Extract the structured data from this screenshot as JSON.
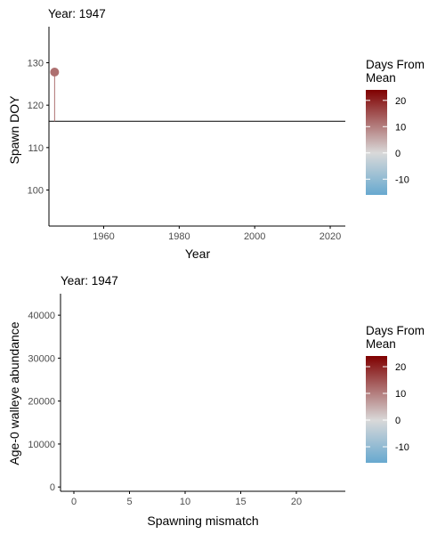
{
  "colors": {
    "low": "#67a9cf",
    "mid": "#d9d9d9",
    "high": "#7f0000",
    "axis": "#000000",
    "tick_text": "#4d4d4d"
  },
  "chart_data": [
    {
      "type": "scatter",
      "title": "Year: 1947",
      "xlabel": "Year",
      "ylabel": "Spawn DOY",
      "xlim": [
        1945.5,
        2024
      ],
      "ylim": [
        91.5,
        138.5
      ],
      "x_ticks": [
        1960,
        1980,
        2000,
        2020
      ],
      "y_ticks": [
        100,
        110,
        120,
        130
      ],
      "hline": 116.2,
      "points": [
        {
          "x": 1947,
          "y": 127.8,
          "days_from_mean": 11.6
        }
      ],
      "legend": {
        "title_lines": [
          "Days From",
          "Mean"
        ],
        "ticks": [
          20,
          10,
          0,
          -10
        ],
        "range": [
          -16,
          24
        ],
        "placement": "right"
      }
    },
    {
      "type": "scatter",
      "title": "Year: 1947",
      "xlabel": "Spawning mismatch",
      "ylabel": "Age-0 walleye abundance",
      "xlim": [
        -1.2,
        24.4
      ],
      "ylim": [
        -1000,
        45000
      ],
      "x_ticks": [
        0,
        5,
        10,
        15,
        20
      ],
      "y_ticks": [
        0,
        10000,
        20000,
        30000,
        40000
      ],
      "points": [],
      "legend": {
        "title_lines": [
          "Days From",
          "Mean"
        ],
        "ticks": [
          20,
          10,
          0,
          -10
        ],
        "range": [
          -16,
          24
        ],
        "placement": "right"
      }
    }
  ]
}
